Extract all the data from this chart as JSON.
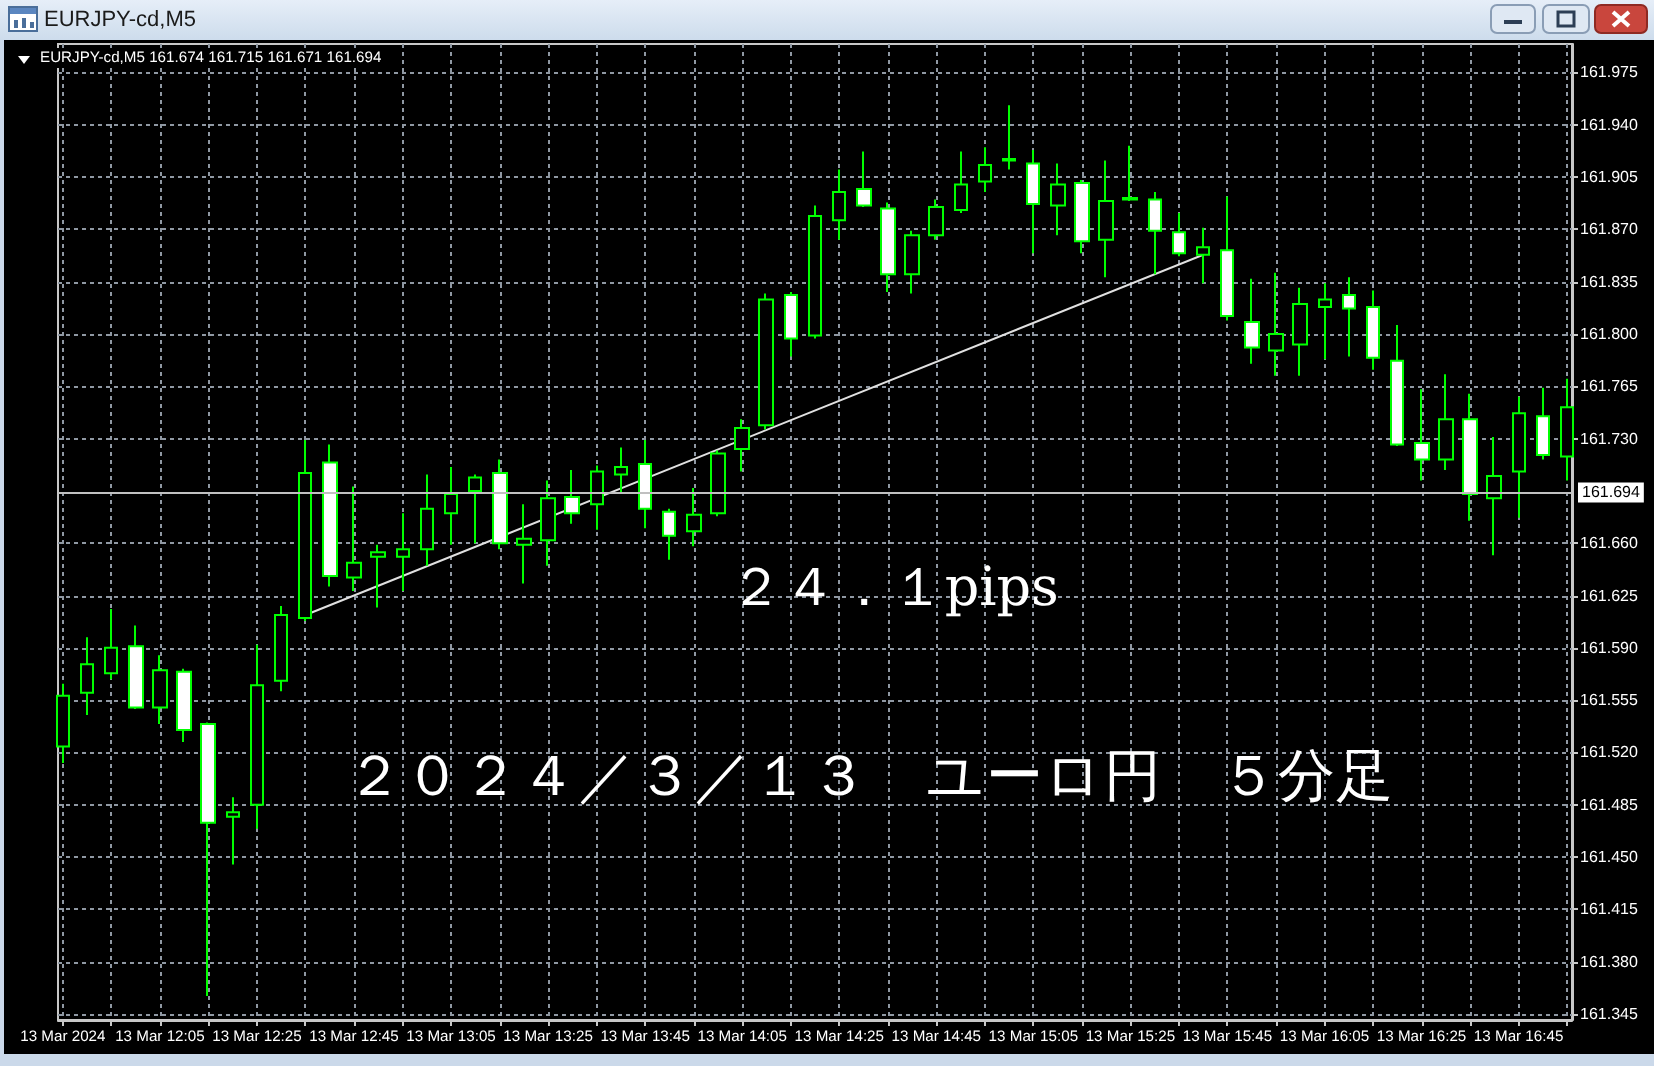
{
  "chart_data": {
    "type": "candlestick",
    "title": "EURJPY-cd,M5",
    "subtitle": "EURJPY-cd,M5 161.674 161.715 161.671 161.694",
    "annotations": [
      "２４．１pips",
      "２０２４／３／１３　ユーロ円　５分足"
    ],
    "series": [
      {
        "type": "candlestick",
        "color": "#00ff00",
        "x": [
          "2024-03-13T11:45",
          "2024-03-13T11:50",
          "2024-03-13T11:55",
          "2024-03-13T12:00",
          "2024-03-13T12:05",
          "2024-03-13T12:10",
          "2024-03-13T12:15",
          "2024-03-13T12:20",
          "2024-03-13T12:25",
          "2024-03-13T12:30",
          "2024-03-13T12:35",
          "2024-03-13T12:40",
          "2024-03-13T12:45",
          "2024-03-13T12:50",
          "2024-03-13T12:55",
          "2024-03-13T13:00",
          "2024-03-13T13:05",
          "2024-03-13T13:10",
          "2024-03-13T13:15",
          "2024-03-13T13:20",
          "2024-03-13T13:25",
          "2024-03-13T13:30",
          "2024-03-13T13:35",
          "2024-03-13T13:40",
          "2024-03-13T13:45",
          "2024-03-13T13:50",
          "2024-03-13T13:55",
          "2024-03-13T14:00",
          "2024-03-13T14:05",
          "2024-03-13T14:10",
          "2024-03-13T14:15",
          "2024-03-13T14:20",
          "2024-03-13T14:25",
          "2024-03-13T14:30",
          "2024-03-13T14:35",
          "2024-03-13T14:40",
          "2024-03-13T14:45",
          "2024-03-13T14:50",
          "2024-03-13T14:55",
          "2024-03-13T15:00",
          "2024-03-13T15:05",
          "2024-03-13T15:10",
          "2024-03-13T15:15",
          "2024-03-13T15:20",
          "2024-03-13T15:25",
          "2024-03-13T15:30",
          "2024-03-13T15:35",
          "2024-03-13T15:40",
          "2024-03-13T15:45",
          "2024-03-13T15:50",
          "2024-03-13T15:55",
          "2024-03-13T16:00",
          "2024-03-13T16:05",
          "2024-03-13T16:10",
          "2024-03-13T16:15",
          "2024-03-13T16:20",
          "2024-03-13T16:25",
          "2024-03-13T16:30",
          "2024-03-13T16:35",
          "2024-03-13T16:40",
          "2024-03-13T16:45",
          "2024-03-13T16:50",
          "2024-03-13T16:55"
        ],
        "ohlc": [
          [
            161.524,
            161.566,
            161.513,
            161.558
          ],
          [
            161.56,
            161.597,
            161.545,
            161.579
          ],
          [
            161.573,
            161.616,
            161.569,
            161.59
          ],
          [
            161.591,
            161.605,
            161.549,
            161.55
          ],
          [
            161.55,
            161.585,
            161.539,
            161.575
          ],
          [
            161.574,
            161.576,
            161.527,
            161.535
          ],
          [
            161.539,
            161.54,
            161.357,
            161.473
          ],
          [
            161.477,
            161.49,
            161.445,
            161.48
          ],
          [
            161.485,
            161.592,
            161.469,
            161.565
          ],
          [
            161.568,
            161.618,
            161.561,
            161.612
          ],
          [
            161.61,
            161.729,
            161.608,
            161.707
          ],
          [
            161.714,
            161.726,
            161.631,
            161.638
          ],
          [
            161.637,
            161.698,
            161.628,
            161.647
          ],
          [
            161.651,
            161.659,
            161.617,
            161.654
          ],
          [
            161.651,
            161.68,
            161.628,
            161.656
          ],
          [
            161.656,
            161.706,
            161.645,
            161.683
          ],
          [
            161.68,
            161.711,
            161.659,
            161.693
          ],
          [
            161.695,
            161.706,
            161.66,
            161.704
          ],
          [
            161.707,
            161.716,
            161.656,
            161.66
          ],
          [
            161.659,
            161.686,
            161.633,
            161.663
          ],
          [
            161.662,
            161.702,
            161.645,
            161.69
          ],
          [
            161.691,
            161.709,
            161.673,
            161.68
          ],
          [
            161.686,
            161.712,
            161.669,
            161.708
          ],
          [
            161.706,
            161.724,
            161.694,
            161.711
          ],
          [
            161.713,
            161.729,
            161.67,
            161.683
          ],
          [
            161.681,
            161.683,
            161.649,
            161.665
          ],
          [
            161.668,
            161.697,
            161.658,
            161.679
          ],
          [
            161.68,
            161.722,
            161.678,
            161.72
          ],
          [
            161.723,
            161.743,
            161.708,
            161.737
          ],
          [
            161.739,
            161.827,
            161.736,
            161.823
          ],
          [
            161.826,
            161.828,
            161.785,
            161.797
          ],
          [
            161.799,
            161.886,
            161.797,
            161.879
          ],
          [
            161.876,
            161.91,
            161.863,
            161.895
          ],
          [
            161.897,
            161.922,
            161.885,
            161.886
          ],
          [
            161.884,
            161.888,
            161.828,
            161.84
          ],
          [
            161.84,
            161.869,
            161.827,
            161.866
          ],
          [
            161.866,
            161.89,
            161.863,
            161.885
          ],
          [
            161.883,
            161.922,
            161.881,
            161.9
          ],
          [
            161.902,
            161.925,
            161.895,
            161.913
          ],
          [
            161.916,
            161.953,
            161.91,
            161.917
          ],
          [
            161.914,
            161.923,
            161.854,
            161.887
          ],
          [
            161.886,
            161.914,
            161.866,
            161.9
          ],
          [
            161.901,
            161.903,
            161.854,
            161.862
          ],
          [
            161.863,
            161.916,
            161.838,
            161.889
          ],
          [
            161.891,
            161.926,
            161.889,
            161.89
          ],
          [
            161.89,
            161.895,
            161.84,
            161.869
          ],
          [
            161.868,
            161.881,
            161.852,
            161.854
          ],
          [
            161.853,
            161.871,
            161.834,
            161.858
          ],
          [
            161.856,
            161.892,
            161.809,
            161.812
          ],
          [
            161.808,
            161.837,
            161.78,
            161.791
          ],
          [
            161.789,
            161.841,
            161.772,
            161.8
          ],
          [
            161.793,
            161.831,
            161.772,
            161.82
          ],
          [
            161.818,
            161.834,
            161.783,
            161.823
          ],
          [
            161.826,
            161.838,
            161.785,
            161.817
          ],
          [
            161.818,
            161.829,
            161.776,
            161.784
          ],
          [
            161.782,
            161.806,
            161.725,
            161.726
          ],
          [
            161.727,
            161.763,
            161.702,
            161.716
          ],
          [
            161.716,
            161.773,
            161.709,
            161.743
          ],
          [
            161.743,
            161.76,
            161.675,
            161.693
          ],
          [
            161.69,
            161.731,
            161.652,
            161.705
          ],
          [
            161.708,
            161.758,
            161.677,
            161.747
          ],
          [
            161.745,
            161.764,
            161.716,
            161.719
          ],
          [
            161.718,
            161.77,
            161.702,
            161.751
          ]
        ],
        "colors": [
          "#000000",
          "#000000",
          "#000000",
          "#ffffff",
          "#000000",
          "#ffffff",
          "#ffffff",
          "#000000",
          "#000000",
          "#000000",
          "#000000",
          "#ffffff",
          "#000000",
          "#000000",
          "#000000",
          "#000000",
          "#000000",
          "#000000",
          "#ffffff",
          "#000000",
          "#000000",
          "#ffffff",
          "#000000",
          "#000000",
          "#ffffff",
          "#ffffff",
          "#000000",
          "#000000",
          "#000000",
          "#000000",
          "#ffffff",
          "#000000",
          "#000000",
          "#ffffff",
          "#ffffff",
          "#000000",
          "#000000",
          "#000000",
          "#000000",
          "#000000",
          "#ffffff",
          "#000000",
          "#ffffff",
          "#000000",
          "#ffffff",
          "#ffffff",
          "#ffffff",
          "#000000",
          "#ffffff",
          "#ffffff",
          "#000000",
          "#000000",
          "#000000",
          "#ffffff",
          "#ffffff",
          "#ffffff",
          "#ffffff",
          "#000000",
          "#ffffff",
          "#000000",
          "#000000",
          "#ffffff",
          "#000000"
        ]
      },
      {
        "type": "line",
        "color": "#e0e0e0",
        "marker": "none",
        "x": [
          "2024-03-13T12:35",
          "2024-03-13T15:40"
        ],
        "values": [
          161.612,
          161.853
        ]
      }
    ],
    "xlim": [
      "2024-03-13T11:44",
      "2024-03-13T16:56"
    ],
    "xticks": [
      {
        "value": "2024-03-13T11:45",
        "label": "13 Mar 2024"
      },
      {
        "value": "2024-03-13T11:55",
        "label": null
      },
      {
        "value": "2024-03-13T12:05",
        "label": "13 Mar 12:05"
      },
      {
        "value": "2024-03-13T12:15",
        "label": null
      },
      {
        "value": "2024-03-13T12:25",
        "label": "13 Mar 12:25"
      },
      {
        "value": "2024-03-13T12:35",
        "label": null
      },
      {
        "value": "2024-03-13T12:45",
        "label": "13 Mar 12:45"
      },
      {
        "value": "2024-03-13T12:55",
        "label": null
      },
      {
        "value": "2024-03-13T13:05",
        "label": "13 Mar 13:05"
      },
      {
        "value": "2024-03-13T13:15",
        "label": null
      },
      {
        "value": "2024-03-13T13:25",
        "label": "13 Mar 13:25"
      },
      {
        "value": "2024-03-13T13:35",
        "label": null
      },
      {
        "value": "2024-03-13T13:45",
        "label": "13 Mar 13:45"
      },
      {
        "value": "2024-03-13T13:55",
        "label": null
      },
      {
        "value": "2024-03-13T14:05",
        "label": "13 Mar 14:05"
      },
      {
        "value": "2024-03-13T14:15",
        "label": null
      },
      {
        "value": "2024-03-13T14:25",
        "label": "13 Mar 14:25"
      },
      {
        "value": "2024-03-13T14:35",
        "label": null
      },
      {
        "value": "2024-03-13T14:45",
        "label": "13 Mar 14:45"
      },
      {
        "value": "2024-03-13T14:55",
        "label": null
      },
      {
        "value": "2024-03-13T15:05",
        "label": "13 Mar 15:05"
      },
      {
        "value": "2024-03-13T15:15",
        "label": null
      },
      {
        "value": "2024-03-13T15:25",
        "label": "13 Mar 15:25"
      },
      {
        "value": "2024-03-13T15:35",
        "label": null
      },
      {
        "value": "2024-03-13T15:45",
        "label": "13 Mar 15:45"
      },
      {
        "value": "2024-03-13T15:55",
        "label": null
      },
      {
        "value": "2024-03-13T16:05",
        "label": "13 Mar 16:05"
      },
      {
        "value": "2024-03-13T16:15",
        "label": null
      },
      {
        "value": "2024-03-13T16:25",
        "label": "13 Mar 16:25"
      },
      {
        "value": "2024-03-13T16:35",
        "label": null
      },
      {
        "value": "2024-03-13T16:45",
        "label": "13 Mar 16:45"
      },
      {
        "value": "2024-03-13T16:55",
        "label": null
      }
    ],
    "ylim": [
      161.341,
      161.994
    ],
    "yticks": [
      161.345,
      {
        "value": 161.38,
        "label": "161.380"
      },
      161.415,
      {
        "value": 161.45,
        "label": "161.450"
      },
      161.485,
      {
        "value": 161.52,
        "label": "161.520"
      },
      161.555,
      {
        "value": 161.59,
        "label": "161.590"
      },
      161.625,
      {
        "value": 161.66,
        "label": "161.660"
      },
      {
        "value": 161.73,
        "label": "161.730"
      },
      161.765,
      {
        "value": 161.8,
        "label": "161.800"
      },
      161.835,
      {
        "value": 161.87,
        "label": "161.870"
      },
      161.905,
      {
        "value": 161.94,
        "label": "161.940"
      },
      161.975
    ],
    "grid": true,
    "ref_lines": [
      {
        "axis": "y",
        "value": 161.694,
        "label": "161.694",
        "color": "#c0c0c0"
      }
    ]
  }
}
